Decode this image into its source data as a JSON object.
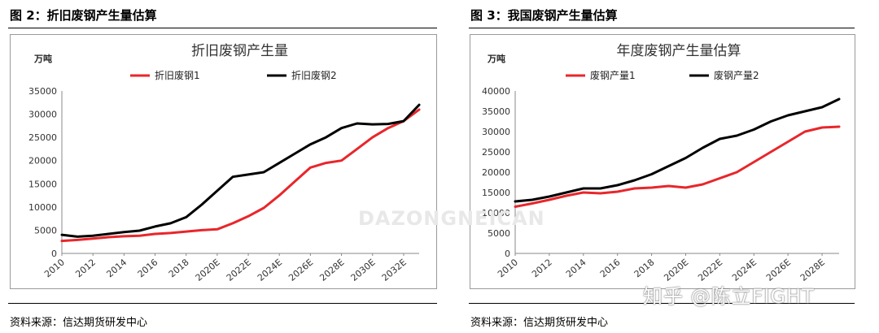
{
  "figures": [
    {
      "fig_title": "图 2：折旧废钢产生量估算",
      "source": "资料来源：信达期货研发中心"
    },
    {
      "fig_title": "图 3：我国废钢产生量估算",
      "source": "资料来源：信达期货研发中心"
    }
  ],
  "watermark_text": "知乎 @陈立FIGHT",
  "background_watermark": "DAZONGNEICAN",
  "chart_data": [
    {
      "type": "line",
      "title": "折旧废钢产生量",
      "ylabel": "万吨",
      "xlabel": "",
      "ylim": [
        0,
        35000
      ],
      "yticks": [
        0,
        5000,
        10000,
        15000,
        20000,
        25000,
        30000,
        35000
      ],
      "x_start": 2010,
      "x_end": 2033,
      "x_tick_labels": [
        "2010",
        "2012",
        "2014",
        "2016",
        "2018",
        "2020E",
        "2022E",
        "2024E",
        "2026E",
        "2028E",
        "2030E",
        "2032E"
      ],
      "x_tick_years": [
        2010,
        2012,
        2014,
        2016,
        2018,
        2020,
        2022,
        2024,
        2026,
        2028,
        2030,
        2032
      ],
      "grid": false,
      "legend_position": "top",
      "series": [
        {
          "name": "折旧废钢1",
          "color": "#e8262b",
          "x": [
            2010,
            2011,
            2012,
            2013,
            2014,
            2015,
            2016,
            2017,
            2018,
            2019,
            2020,
            2021,
            2022,
            2023,
            2024,
            2025,
            2026,
            2027,
            2028,
            2029,
            2030,
            2031,
            2032,
            2033
          ],
          "values": [
            2700,
            2900,
            3200,
            3500,
            3700,
            3800,
            4200,
            4400,
            4700,
            5000,
            5200,
            6500,
            8000,
            9800,
            12500,
            15500,
            18500,
            19500,
            20000,
            22500,
            25000,
            27000,
            28500,
            31000
          ]
        },
        {
          "name": "折旧废钢2",
          "color": "#000000",
          "x": [
            2010,
            2011,
            2012,
            2013,
            2014,
            2015,
            2016,
            2017,
            2018,
            2019,
            2020,
            2021,
            2022,
            2023,
            2024,
            2025,
            2026,
            2027,
            2028,
            2029,
            2030,
            2031,
            2032,
            2033
          ],
          "values": [
            4000,
            3600,
            3800,
            4200,
            4600,
            4900,
            5800,
            6500,
            7800,
            10500,
            13500,
            16500,
            17000,
            17500,
            19500,
            21500,
            23500,
            25000,
            27000,
            28000,
            27800,
            27900,
            28500,
            32000
          ]
        }
      ]
    },
    {
      "type": "line",
      "title": "年度废钢产生量估算",
      "ylabel": "万吨",
      "xlabel": "",
      "ylim": [
        0,
        40000
      ],
      "yticks": [
        0,
        5000,
        10000,
        15000,
        20000,
        25000,
        30000,
        35000,
        40000
      ],
      "x_start": 2010,
      "x_end": 2029,
      "x_tick_labels": [
        "2010",
        "2012",
        "2014",
        "2016",
        "2018",
        "2020E",
        "2022E",
        "2024E",
        "2026E",
        "2028E"
      ],
      "x_tick_years": [
        2010,
        2012,
        2014,
        2016,
        2018,
        2020,
        2022,
        2024,
        2026,
        2028
      ],
      "grid": false,
      "legend_position": "top",
      "series": [
        {
          "name": "废钢产量1",
          "color": "#e8262b",
          "x": [
            2010,
            2011,
            2012,
            2013,
            2014,
            2015,
            2016,
            2017,
            2018,
            2019,
            2020,
            2021,
            2022,
            2023,
            2024,
            2025,
            2026,
            2027,
            2028,
            2029
          ],
          "values": [
            11500,
            12300,
            13200,
            14200,
            15000,
            14800,
            15200,
            16000,
            16200,
            16600,
            16200,
            17000,
            18500,
            20000,
            22500,
            25000,
            27500,
            30000,
            31000,
            31200
          ]
        },
        {
          "name": "废钢产量2",
          "color": "#000000",
          "x": [
            2010,
            2011,
            2012,
            2013,
            2014,
            2015,
            2016,
            2017,
            2018,
            2019,
            2020,
            2021,
            2022,
            2023,
            2024,
            2025,
            2026,
            2027,
            2028,
            2029
          ],
          "values": [
            12800,
            13200,
            14000,
            15000,
            16000,
            16000,
            16800,
            18000,
            19500,
            21500,
            23500,
            26000,
            28200,
            29000,
            30500,
            32500,
            34000,
            35000,
            36000,
            38000
          ]
        }
      ]
    }
  ]
}
